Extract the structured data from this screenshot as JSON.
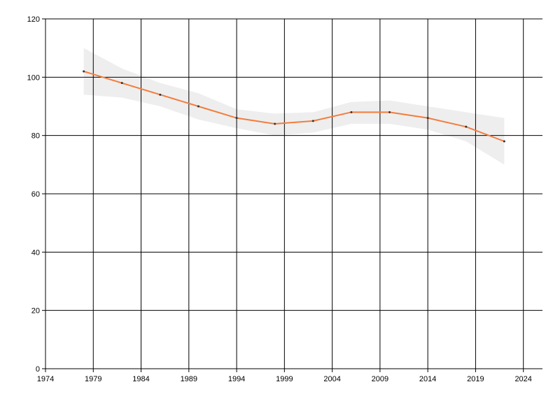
{
  "chart_data": {
    "type": "line",
    "x": [
      1978,
      1982,
      1986,
      1990,
      1994,
      1998,
      2002,
      2006,
      2010,
      2014,
      2018,
      2022
    ],
    "series": [
      {
        "values": [
          102,
          98,
          94,
          90,
          86,
          84,
          85,
          88,
          88,
          86,
          83,
          78
        ],
        "color": "#f47c3c"
      }
    ],
    "band": {
      "upper": [
        110,
        103,
        98,
        94.5,
        89,
        87.5,
        88,
        91.5,
        92,
        90,
        88,
        86
      ],
      "lower": [
        94,
        93,
        90,
        85.5,
        82.5,
        80,
        81,
        84,
        84,
        82,
        78,
        70
      ],
      "color": "#eeeeee"
    },
    "xlim": [
      1974,
      2026
    ],
    "xticks": [
      1974,
      1979,
      1984,
      1989,
      1994,
      1999,
      2004,
      2009,
      2014,
      2019,
      2024
    ],
    "ylim": [
      0,
      120
    ],
    "yticks": [
      0,
      20,
      40,
      60,
      80,
      100,
      120
    ],
    "grid": true
  }
}
